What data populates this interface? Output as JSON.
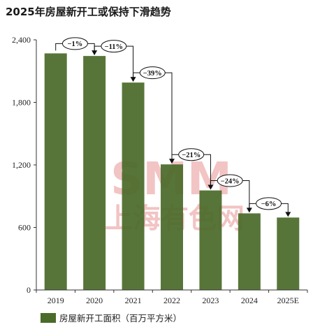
{
  "colors": {
    "bar": "#4b6b2a",
    "axis": "#333333",
    "watermark": "#f2c4c4"
  },
  "watermark": {
    "line1": "SMM",
    "line2": "上海有色网"
  },
  "chart_data": {
    "type": "bar",
    "title": "2025年房屋新开工或保持下滑趋势",
    "categories": [
      "2019",
      "2020",
      "2021",
      "2022",
      "2023",
      "2024",
      "2025E"
    ],
    "series": [
      {
        "name": "房屋新开工面积（百万平方米）",
        "values": [
          2270,
          2245,
          1990,
          1205,
          955,
          735,
          695
        ]
      }
    ],
    "ylim": [
      0,
      2400
    ],
    "yticks": [
      0,
      600,
      1200,
      1800,
      2400
    ],
    "ytick_labels": [
      "0",
      "600",
      "1,200",
      "1,800",
      "2,400"
    ],
    "xlabel": "",
    "ylabel": "",
    "grid": false,
    "legend": "bottom-left",
    "annotations": [
      {
        "from": 0,
        "to": 1,
        "label": "−1%"
      },
      {
        "from": 1,
        "to": 2,
        "label": "−11%"
      },
      {
        "from": 2,
        "to": 3,
        "label": "−39%"
      },
      {
        "from": 3,
        "to": 4,
        "label": "−21%"
      },
      {
        "from": 4,
        "to": 5,
        "label": "−24%"
      },
      {
        "from": 5,
        "to": 6,
        "label": "−6%"
      }
    ]
  }
}
